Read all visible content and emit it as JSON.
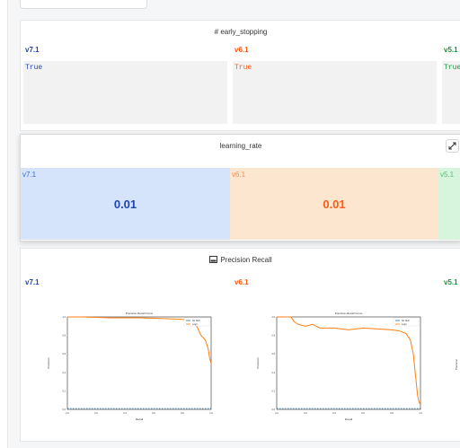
{
  "params": {
    "title": "# early_stopping",
    "columns": [
      {
        "version": "v7.1",
        "value": "True",
        "color": "#1f45b3"
      },
      {
        "version": "v6.1",
        "value": "True",
        "color": "#ff5a14"
      },
      {
        "version": "v5.1",
        "value": "True",
        "color": "#129a36"
      }
    ]
  },
  "metric": {
    "title": "learning_rate",
    "expand_icon": "expand-icon",
    "columns": [
      {
        "version": "v7.1",
        "value": "0.01",
        "bg": "#d5e4fb",
        "fg": "#1f45b3",
        "label_color": "#3a6bd6"
      },
      {
        "version": "v6.1",
        "value": "0.01",
        "bg": "#fde6cf",
        "fg": "#ff5a14",
        "label_color": "#ff8a4a"
      },
      {
        "version": "v5.1",
        "value": "",
        "bg": "#d6f5dc",
        "fg": "#129a36",
        "label_color": "#5bbf6f"
      }
    ]
  },
  "plots": {
    "title": "Precision Recall",
    "icon": "image-icon",
    "columns": [
      {
        "version": "v7.1"
      },
      {
        "version": "v6.1"
      },
      {
        "version": "v5.1"
      }
    ]
  },
  "chart_data": [
    {
      "type": "line",
      "title": "Precision-Recall Curve",
      "xlabel": "Recall",
      "ylabel": "Precision",
      "xlim": [
        0,
        1
      ],
      "ylim": [
        0,
        1
      ],
      "xticks": [
        "0.0",
        "0.2",
        "0.4",
        "0.6",
        "0.8",
        "1.0"
      ],
      "yticks": [
        "0.0",
        "0.2",
        "0.4",
        "0.6",
        "0.8",
        "1.0"
      ],
      "legend": [
        "No Skill",
        "Logit"
      ],
      "series": [
        {
          "name": "No Skill",
          "color": "#1f77b4",
          "dashed": true,
          "x": [
            0,
            1
          ],
          "y": [
            0.01,
            0.01
          ]
        },
        {
          "name": "Logit",
          "color": "#ff7f0e",
          "x": [
            0,
            0.1,
            0.3,
            0.5,
            0.7,
            0.85,
            0.9,
            0.93,
            0.96,
            0.97,
            0.98,
            0.99,
            1.0
          ],
          "y": [
            1.0,
            1.0,
            0.99,
            0.99,
            0.98,
            0.97,
            0.9,
            0.8,
            0.75,
            0.7,
            0.65,
            0.55,
            0.5
          ]
        }
      ]
    },
    {
      "type": "line",
      "title": "Precision-Recall Curve",
      "xlabel": "Recall",
      "ylabel": "Precision",
      "xlim": [
        0,
        1
      ],
      "ylim": [
        0,
        1
      ],
      "xticks": [
        "0.0",
        "0.2",
        "0.4",
        "0.6",
        "0.8",
        "1.0"
      ],
      "yticks": [
        "0.0",
        "0.2",
        "0.4",
        "0.6",
        "0.8",
        "1.0"
      ],
      "legend": [
        "No Skill",
        "Logit"
      ],
      "series": [
        {
          "name": "No Skill",
          "color": "#1f77b4",
          "dashed": true,
          "x": [
            0,
            1
          ],
          "y": [
            0.01,
            0.01
          ]
        },
        {
          "name": "Logit",
          "color": "#ff7f0e",
          "x": [
            0,
            0.05,
            0.1,
            0.12,
            0.15,
            0.2,
            0.25,
            0.3,
            0.4,
            0.5,
            0.6,
            0.7,
            0.8,
            0.85,
            0.9,
            0.93,
            0.95,
            0.96,
            0.97,
            0.98,
            0.99,
            1.0
          ],
          "y": [
            1.0,
            1.0,
            1.0,
            0.95,
            0.92,
            0.9,
            0.92,
            0.88,
            0.88,
            0.86,
            0.88,
            0.87,
            0.86,
            0.85,
            0.82,
            0.75,
            0.6,
            0.45,
            0.3,
            0.15,
            0.08,
            0.05
          ]
        }
      ]
    }
  ]
}
